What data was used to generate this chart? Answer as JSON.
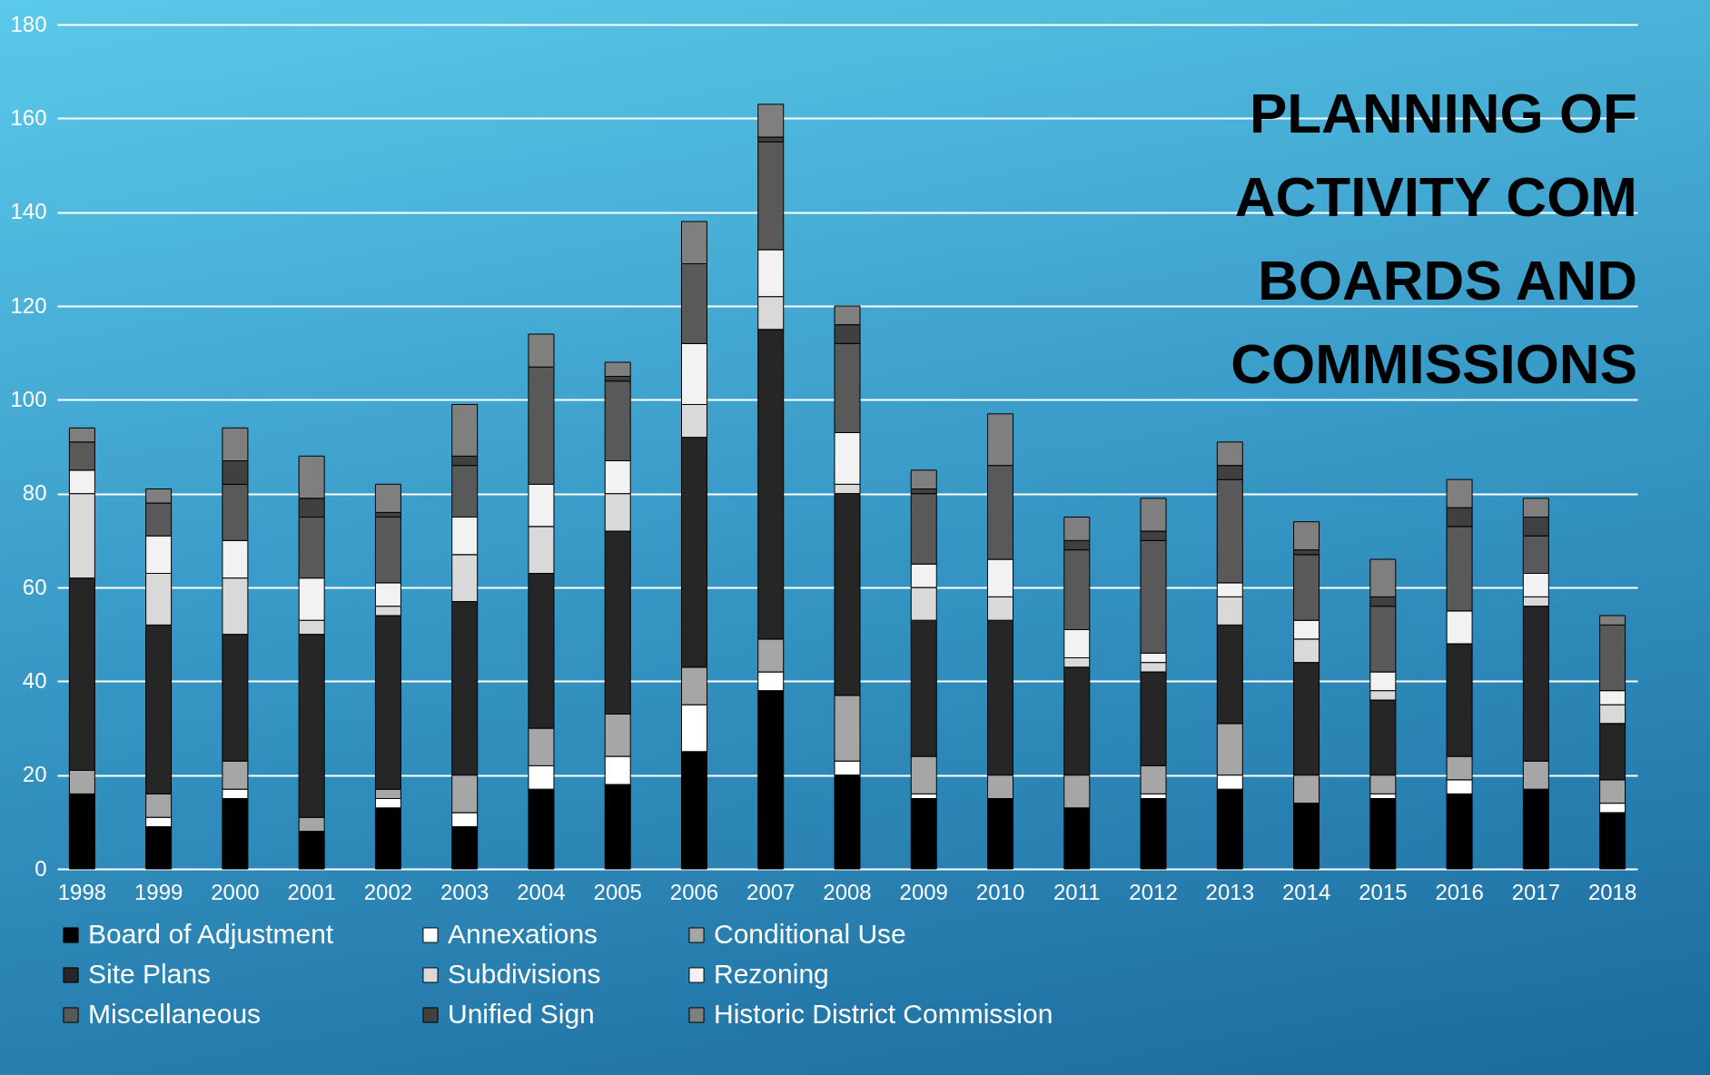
{
  "chart_data": {
    "type": "bar",
    "title": "PLANNING OF\nACTIVITY COM\nBOARDS AND\nCOMMISSIONS",
    "stacked": true,
    "categories": [
      "1998",
      "1999",
      "2000",
      "2001",
      "2002",
      "2003",
      "2004",
      "2005",
      "2006",
      "2007",
      "2008",
      "2009",
      "2010",
      "2011",
      "2012",
      "2013",
      "2014",
      "2015",
      "2016",
      "2017",
      "2018"
    ],
    "series": [
      {
        "name": "Board of Adjustment",
        "color": "#000000",
        "values": [
          16,
          9,
          15,
          8,
          13,
          9,
          17,
          18,
          25,
          38,
          20,
          15,
          15,
          13,
          15,
          17,
          14,
          15,
          16,
          17,
          12
        ]
      },
      {
        "name": "Annexations",
        "color": "#ffffff",
        "values": [
          0,
          2,
          2,
          0,
          2,
          3,
          5,
          6,
          10,
          4,
          3,
          1,
          0,
          0,
          1,
          3,
          0,
          1,
          3,
          0,
          2
        ]
      },
      {
        "name": "Conditional Use",
        "color": "#a6a6a6",
        "values": [
          5,
          5,
          6,
          3,
          2,
          8,
          8,
          9,
          8,
          7,
          14,
          8,
          5,
          7,
          6,
          11,
          6,
          4,
          5,
          6,
          5
        ]
      },
      {
        "name": "Site Plans",
        "color": "#262626",
        "values": [
          41,
          36,
          27,
          39,
          37,
          37,
          33,
          39,
          49,
          66,
          43,
          29,
          33,
          23,
          20,
          21,
          24,
          16,
          24,
          33,
          12
        ]
      },
      {
        "name": "Subdivisions",
        "color": "#d9d9d9",
        "values": [
          18,
          11,
          12,
          3,
          2,
          10,
          10,
          8,
          7,
          7,
          2,
          7,
          5,
          2,
          2,
          6,
          5,
          2,
          0,
          2,
          4
        ]
      },
      {
        "name": "Rezoning",
        "color": "#f2f2f2",
        "values": [
          5,
          8,
          8,
          9,
          5,
          8,
          9,
          7,
          13,
          10,
          11,
          5,
          8,
          6,
          2,
          3,
          4,
          4,
          7,
          5,
          3
        ]
      },
      {
        "name": "Miscellaneous",
        "color": "#595959",
        "values": [
          6,
          7,
          12,
          13,
          14,
          11,
          25,
          17,
          17,
          23,
          19,
          15,
          20,
          17,
          24,
          22,
          14,
          14,
          18,
          8,
          14
        ]
      },
      {
        "name": "Unified Sign",
        "color": "#404040",
        "values": [
          0,
          0,
          5,
          4,
          1,
          2,
          0,
          1,
          0,
          1,
          4,
          1,
          0,
          2,
          2,
          3,
          1,
          2,
          4,
          4,
          0
        ]
      },
      {
        "name": "Historic District Commission",
        "color": "#7f7f7f",
        "values": [
          3,
          3,
          7,
          9,
          6,
          11,
          7,
          3,
          9,
          7,
          4,
          4,
          11,
          5,
          7,
          5,
          6,
          8,
          6,
          4,
          2
        ]
      }
    ],
    "ylim": [
      0,
      180
    ],
    "yticks": [
      0,
      20,
      40,
      60,
      80,
      100,
      120,
      140,
      160,
      180
    ],
    "grid": "y",
    "legend": "bottom"
  }
}
